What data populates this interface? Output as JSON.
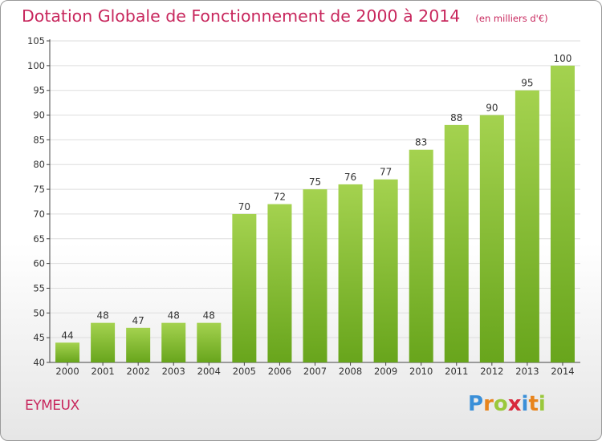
{
  "title": "Dotation Globale de Fonctionnement de 2000 à 2014",
  "subtitle": "(en milliers d'€)",
  "commune": "EYMEUX",
  "logo": {
    "text": "Proxiti",
    "letters": [
      {
        "ch": "P",
        "color": "#3a8fd8"
      },
      {
        "ch": "r",
        "color": "#e8841c"
      },
      {
        "ch": "o",
        "color": "#9ac83c"
      },
      {
        "ch": "x",
        "color": "#d8283c"
      },
      {
        "ch": "i",
        "color": "#3a8fd8"
      },
      {
        "ch": "t",
        "color": "#e8841c"
      },
      {
        "ch": "i",
        "color": "#9ac83c"
      }
    ]
  },
  "colors": {
    "bar_light": "#a4d24f",
    "bar_dark": "#68a51c",
    "grid": "#dddddd",
    "axis": "#444444",
    "text": "#333333"
  },
  "chart_data": {
    "type": "bar",
    "title": "Dotation Globale de Fonctionnement de 2000 à 2014",
    "subtitle": "(en milliers d'€)",
    "xlabel": "",
    "ylabel": "",
    "categories": [
      "2000",
      "2001",
      "2002",
      "2003",
      "2004",
      "2005",
      "2006",
      "2007",
      "2008",
      "2009",
      "2010",
      "2011",
      "2012",
      "2013",
      "2014"
    ],
    "values": [
      44,
      48,
      47,
      48,
      48,
      70,
      72,
      75,
      76,
      77,
      83,
      88,
      90,
      95,
      100
    ],
    "value_labels": [
      "44",
      "48",
      "47",
      "48",
      "48",
      "70",
      "72",
      "75",
      "76",
      "77",
      "83",
      "88",
      "90",
      "95",
      "100"
    ],
    "ylim": [
      40,
      105
    ],
    "yticks": [
      "40",
      "45",
      "50",
      "55",
      "60",
      "65",
      "70",
      "75",
      "80",
      "85",
      "90",
      "95",
      "100",
      "105"
    ],
    "grid": true,
    "legend": "none"
  }
}
